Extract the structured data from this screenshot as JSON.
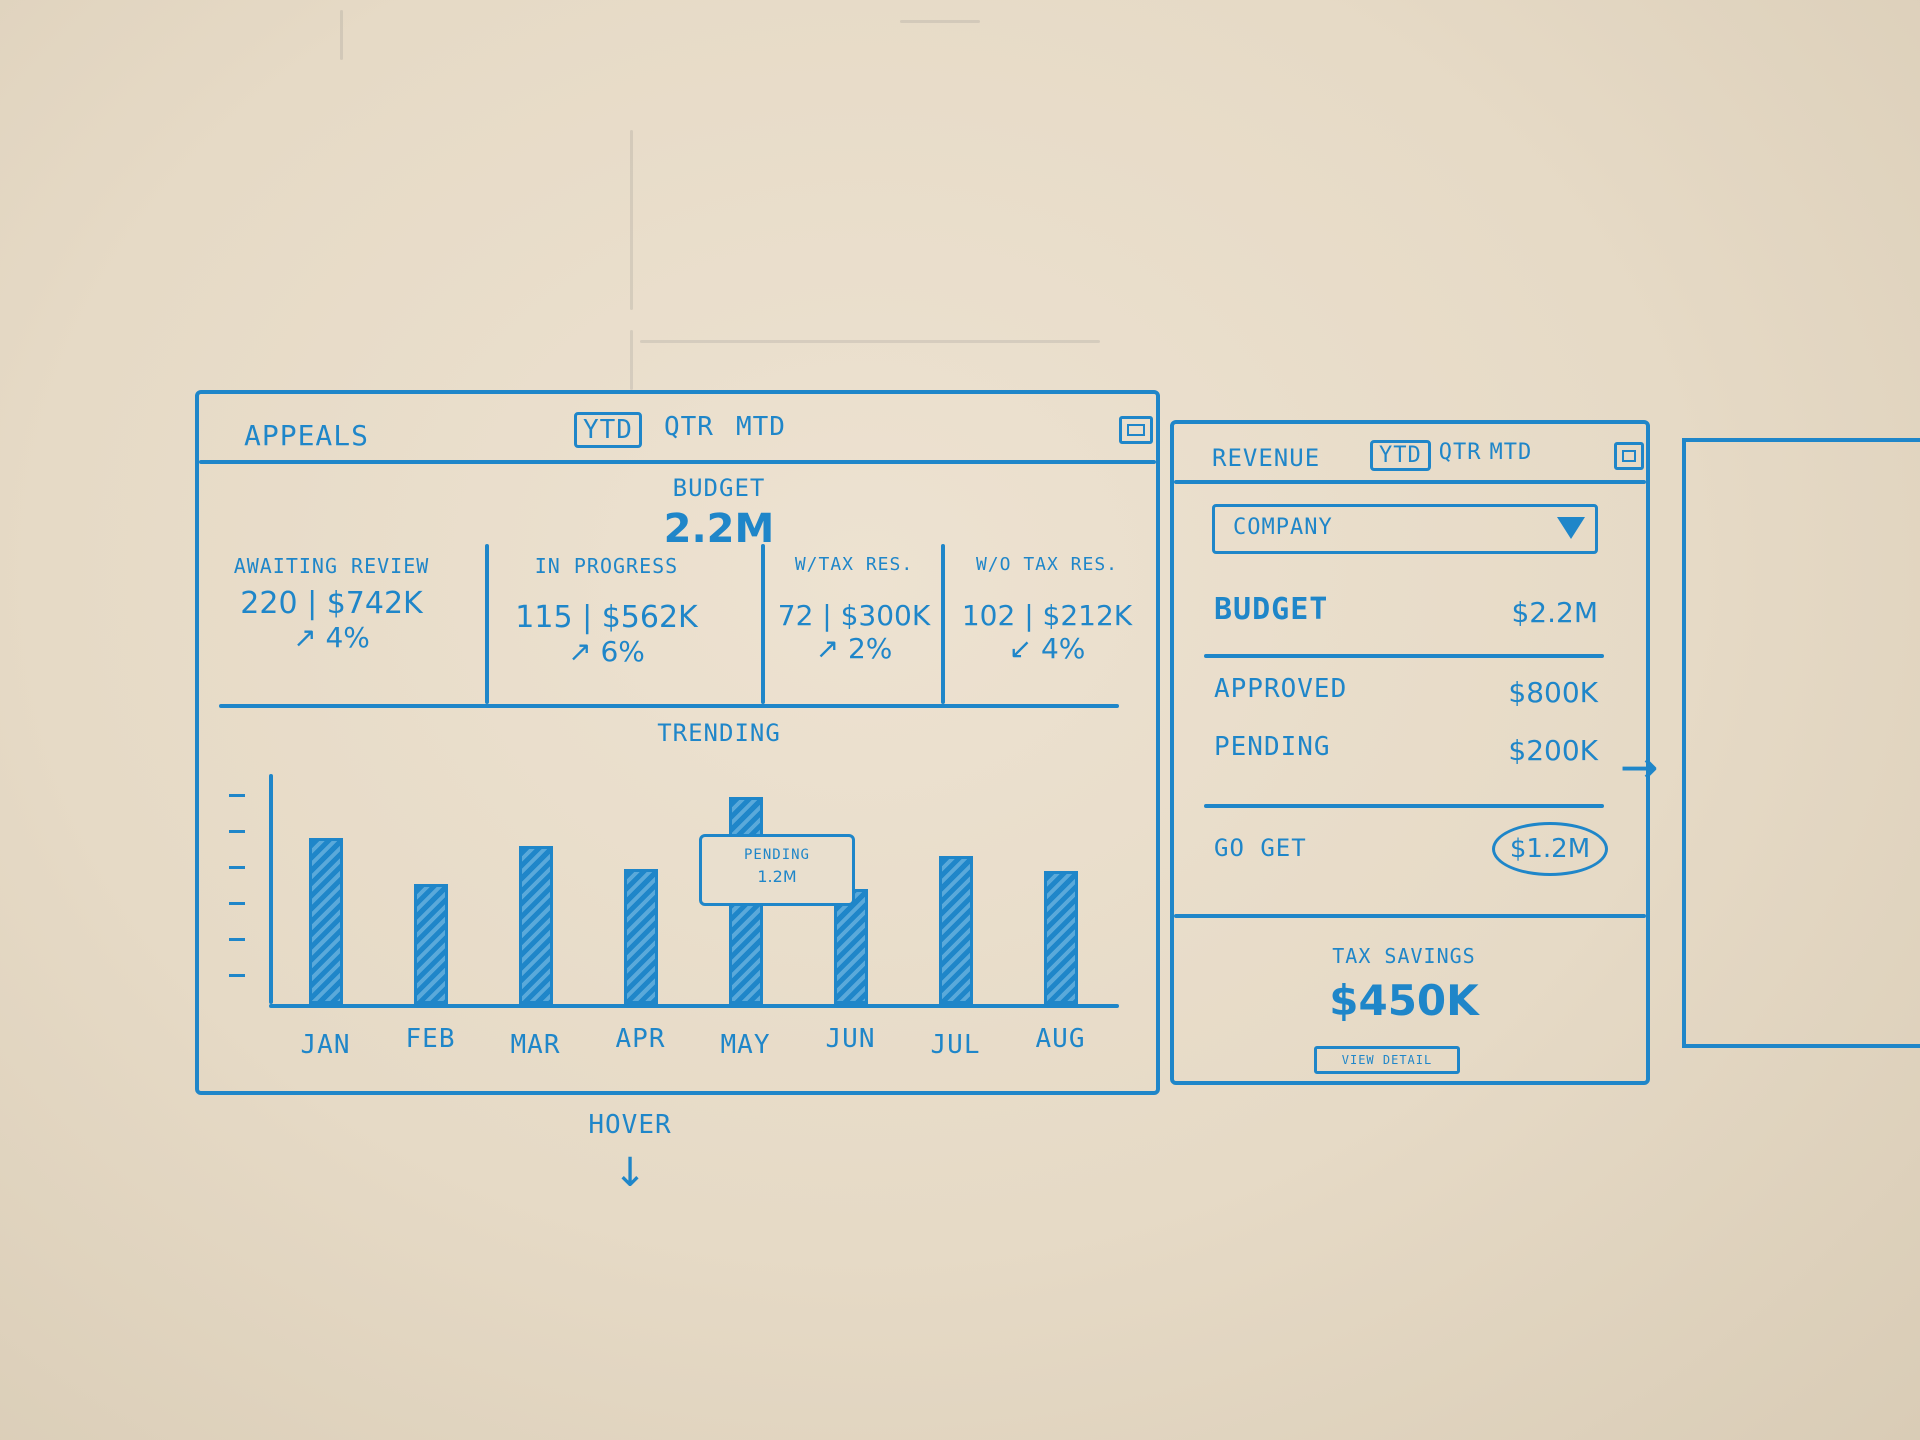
{
  "main": {
    "title": "APPEALS",
    "tabs": [
      {
        "label": "YTD"
      },
      {
        "label": "QTR"
      },
      {
        "label": "MTD"
      }
    ],
    "budget_label": "BUDGET",
    "budget_value": "2.2M",
    "metrics": [
      {
        "label": "AWAITING REVIEW",
        "value": "220 | $742K",
        "change": "↗ 4%"
      },
      {
        "label": "IN PROGRESS",
        "value": "115 | $562K",
        "change": "↗ 6%"
      },
      {
        "label": "W/TAX RES.",
        "value": "72 | $300K",
        "change": "↗ 2%"
      },
      {
        "label": "W/O TAX RES.",
        "value": "102 | $212K",
        "change": "↙ 4%"
      }
    ],
    "trending_label": "TRENDING",
    "tooltip": {
      "line1": "PENDING",
      "line2": "1.2M"
    }
  },
  "chart_data": {
    "type": "bar",
    "title": "TRENDING",
    "categories": [
      "JAN",
      "FEB",
      "MAR",
      "APR",
      "MAY",
      "JUN",
      "JUL",
      "AUG"
    ],
    "values": [
      6.5,
      4.7,
      6.2,
      5.3,
      8.1,
      4.5,
      5.8,
      5.2
    ],
    "ylim": [
      0,
      9
    ],
    "grid": false
  },
  "side": {
    "title": "REVENUE",
    "tabs": [
      {
        "label": "YTD"
      },
      {
        "label": "QTR"
      },
      {
        "label": "MTD"
      }
    ],
    "dropdown_value": "COMPANY",
    "rows": [
      {
        "label": "BUDGET",
        "value": "$2.2M"
      },
      {
        "label": "APPROVED",
        "value": "$800K"
      },
      {
        "label": "PENDING",
        "value": "$200K"
      },
      {
        "label": "GO GET",
        "value": "$1.2M"
      }
    ],
    "tax_label": "TAX SAVINGS",
    "tax_value": "$450K",
    "view_button": "VIEW DETAIL"
  },
  "annotations": {
    "hover": "HOVER",
    "hover_arrow": "↓",
    "next_arrow": "→"
  },
  "colors": {
    "ink": "#1f86c9",
    "board": "#e6dac6"
  }
}
